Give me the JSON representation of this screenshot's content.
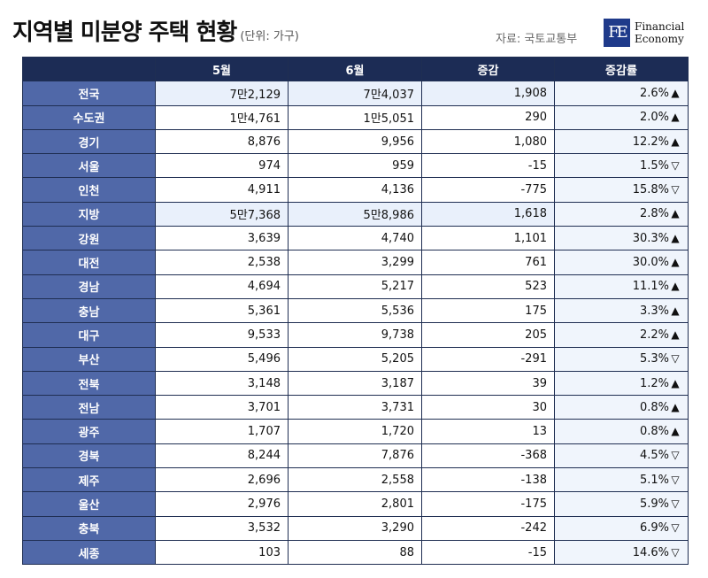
{
  "header": {
    "title": "지역별 미분양 주택 현황",
    "unit": "(단위: 가구)",
    "source": "자료: 국토교통부",
    "logo_mark": "FE",
    "logo_line1": "Financial",
    "logo_line2": "Economy"
  },
  "chart_data": {
    "type": "table",
    "columns": [
      "",
      "5월",
      "6월",
      "증감",
      "증감률"
    ],
    "rows": [
      {
        "region": "전국",
        "may": "7만2,129",
        "jun": "7만4,037",
        "change": "1,908",
        "rate": "2.6%",
        "dir": "▲",
        "highlight": true
      },
      {
        "region": "수도권",
        "may": "1만4,761",
        "jun": "1만5,051",
        "change": "290",
        "rate": "2.0%",
        "dir": "▲",
        "highlight": false
      },
      {
        "region": "경기",
        "may": "8,876",
        "jun": "9,956",
        "change": "1,080",
        "rate": "12.2%",
        "dir": "▲",
        "highlight": false
      },
      {
        "region": "서울",
        "may": "974",
        "jun": "959",
        "change": "-15",
        "rate": "1.5%",
        "dir": "▽",
        "highlight": false
      },
      {
        "region": "인천",
        "may": "4,911",
        "jun": "4,136",
        "change": "-775",
        "rate": "15.8%",
        "dir": "▽",
        "highlight": false
      },
      {
        "region": "지방",
        "may": "5만7,368",
        "jun": "5만8,986",
        "change": "1,618",
        "rate": "2.8%",
        "dir": "▲",
        "highlight": true
      },
      {
        "region": "강원",
        "may": "3,639",
        "jun": "4,740",
        "change": "1,101",
        "rate": "30.3%",
        "dir": "▲",
        "highlight": false
      },
      {
        "region": "대전",
        "may": "2,538",
        "jun": "3,299",
        "change": "761",
        "rate": "30.0%",
        "dir": "▲",
        "highlight": false
      },
      {
        "region": "경남",
        "may": "4,694",
        "jun": "5,217",
        "change": "523",
        "rate": "11.1%",
        "dir": "▲",
        "highlight": false
      },
      {
        "region": "충남",
        "may": "5,361",
        "jun": "5,536",
        "change": "175",
        "rate": "3.3%",
        "dir": "▲",
        "highlight": false
      },
      {
        "region": "대구",
        "may": "9,533",
        "jun": "9,738",
        "change": "205",
        "rate": "2.2%",
        "dir": "▲",
        "highlight": false
      },
      {
        "region": "부산",
        "may": "5,496",
        "jun": "5,205",
        "change": "-291",
        "rate": "5.3%",
        "dir": "▽",
        "highlight": false
      },
      {
        "region": "전북",
        "may": "3,148",
        "jun": "3,187",
        "change": "39",
        "rate": "1.2%",
        "dir": "▲",
        "highlight": false
      },
      {
        "region": "전남",
        "may": "3,701",
        "jun": "3,731",
        "change": "30",
        "rate": "0.8%",
        "dir": "▲",
        "highlight": false
      },
      {
        "region": "광주",
        "may": "1,707",
        "jun": "1,720",
        "change": "13",
        "rate": "0.8%",
        "dir": "▲",
        "highlight": false
      },
      {
        "region": "경북",
        "may": "8,244",
        "jun": "7,876",
        "change": "-368",
        "rate": "4.5%",
        "dir": "▽",
        "highlight": false
      },
      {
        "region": "제주",
        "may": "2,696",
        "jun": "2,558",
        "change": "-138",
        "rate": "5.1%",
        "dir": "▽",
        "highlight": false
      },
      {
        "region": "울산",
        "may": "2,976",
        "jun": "2,801",
        "change": "-175",
        "rate": "5.9%",
        "dir": "▽",
        "highlight": false
      },
      {
        "region": "충북",
        "may": "3,532",
        "jun": "3,290",
        "change": "-242",
        "rate": "6.9%",
        "dir": "▽",
        "highlight": false
      },
      {
        "region": "세종",
        "may": "103",
        "jun": "88",
        "change": "-15",
        "rate": "14.6%",
        "dir": "▽",
        "highlight": false
      }
    ]
  },
  "colors": {
    "header_bg": "#1c2c55",
    "row_label_bg": "#5068a8",
    "highlight_row_bg": "#e9f0fb",
    "rate_col_bg": "#f0f5fc",
    "logo_bg": "#1f3a8a"
  }
}
